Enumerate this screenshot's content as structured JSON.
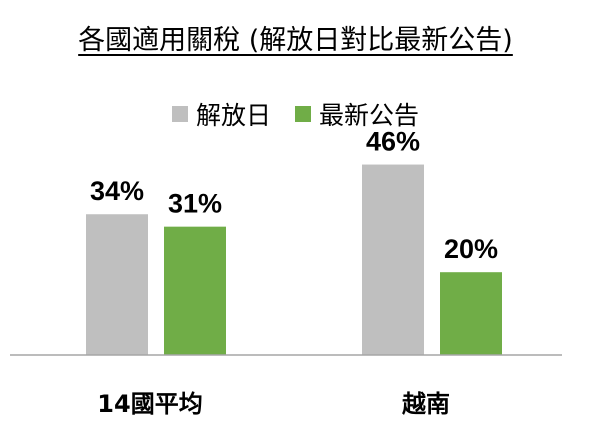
{
  "chart_data": {
    "type": "bar",
    "title": "各國適用關稅 (解放日對比最新公告)",
    "categories": [
      "14國平均",
      "越南"
    ],
    "series": [
      {
        "name": "解放日",
        "values": [
          34,
          46
        ],
        "labels": [
          "34%",
          "46%"
        ],
        "color": "#bfbfbf"
      },
      {
        "name": "最新公告",
        "values": [
          31,
          20
        ],
        "labels": [
          "31%",
          "20%"
        ],
        "color": "#70ad47"
      }
    ],
    "ylim": [
      0,
      50
    ],
    "legend": "top-center",
    "grid": false
  }
}
